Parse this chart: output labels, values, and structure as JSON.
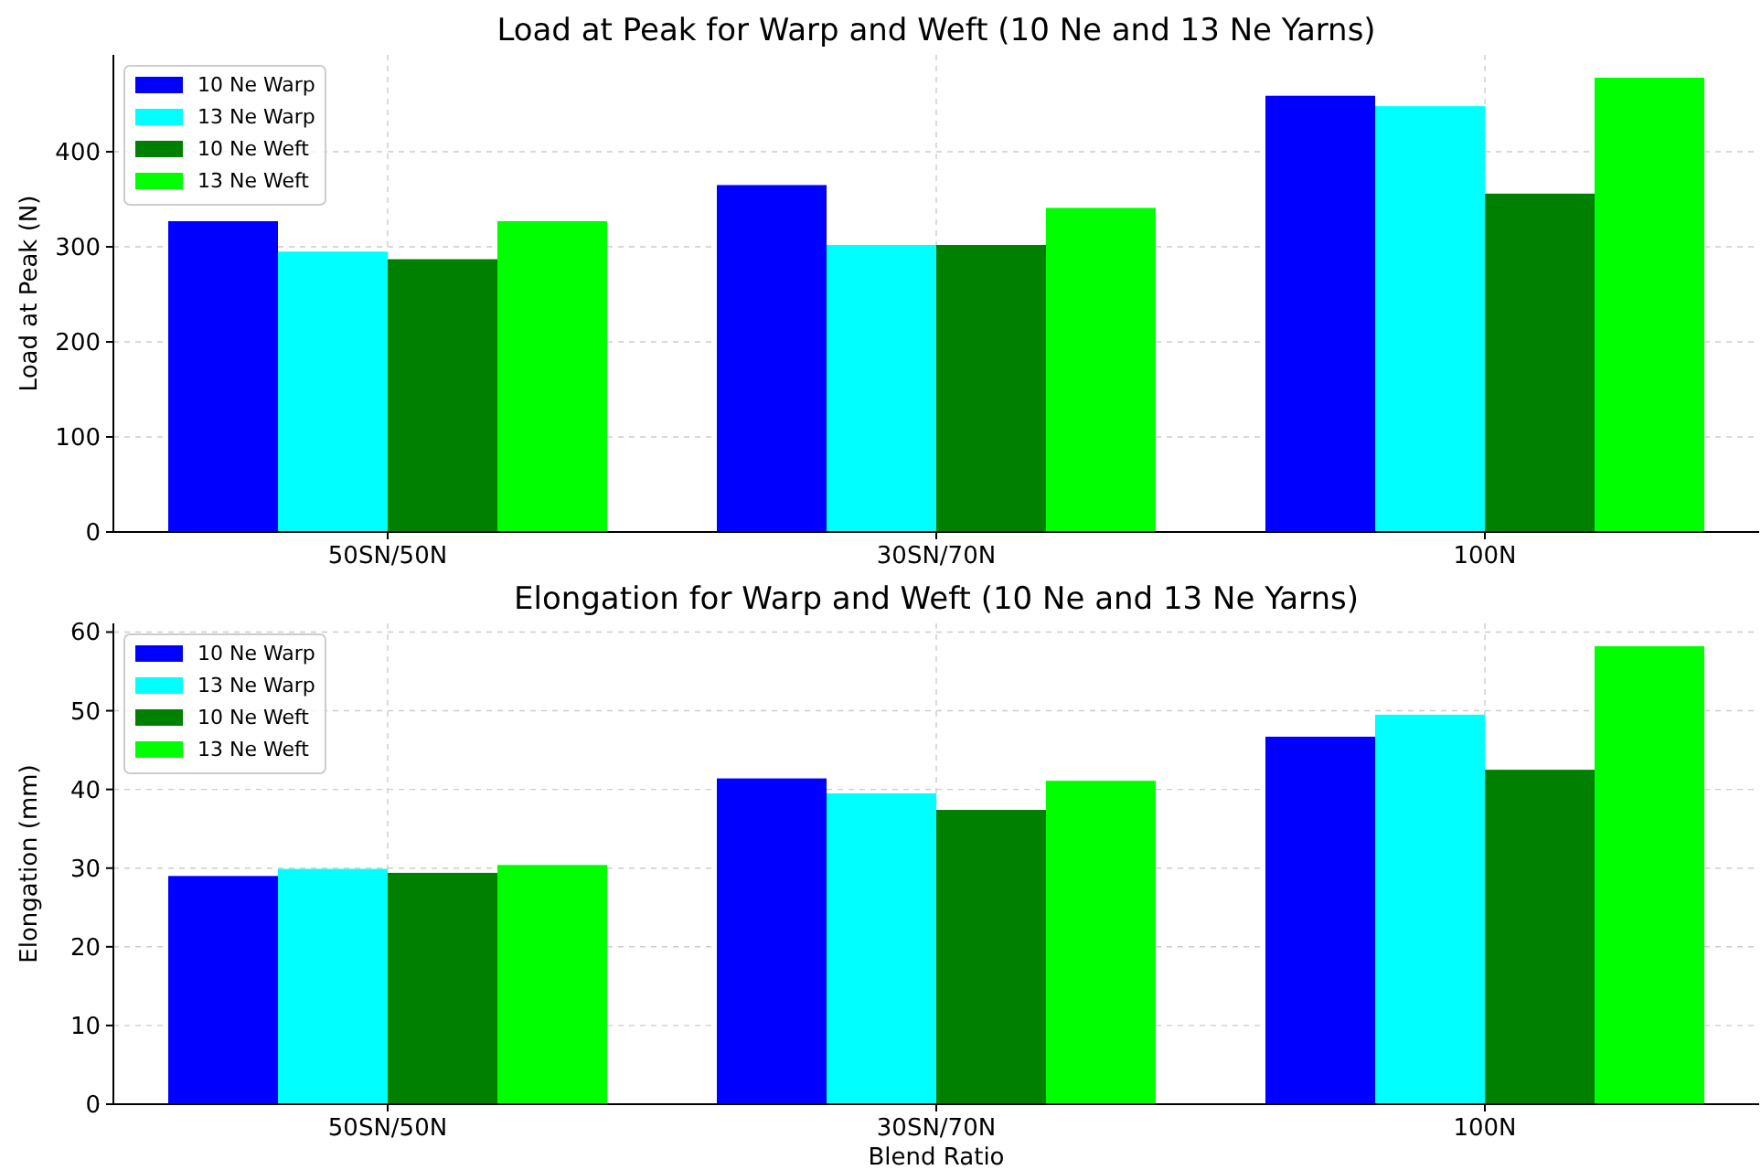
{
  "chart_data": [
    {
      "type": "bar",
      "title": "Load at Peak for Warp and Weft (10 Ne and 13 Ne Yarns)",
      "ylabel": "Load at Peak (N)",
      "categories": [
        "50SN/50N",
        "30SN/70N",
        "100N"
      ],
      "series": [
        {
          "name": "10 Ne Warp",
          "color": "#0000ff",
          "values": [
            327,
            365,
            459
          ]
        },
        {
          "name": "13 Ne Warp",
          "color": "#00ffff",
          "values": [
            295,
            302,
            448
          ]
        },
        {
          "name": "10 Ne Weft",
          "color": "#008000",
          "values": [
            287,
            302,
            356
          ]
        },
        {
          "name": "13 Ne Weft",
          "color": "#00ff00",
          "values": [
            327,
            341,
            478
          ]
        }
      ],
      "ylim": [
        0,
        502
      ],
      "yticks": [
        0,
        100,
        200,
        300,
        400
      ],
      "grid": true,
      "legend": "top left"
    },
    {
      "type": "bar",
      "title": "Elongation for Warp and Weft (10 Ne and 13 Ne Yarns)",
      "xlabel": "Blend Ratio",
      "ylabel": "Elongation (mm)",
      "categories": [
        "50SN/50N",
        "30SN/70N",
        "100N"
      ],
      "series": [
        {
          "name": "10 Ne Warp",
          "color": "#0000ff",
          "values": [
            29.0,
            41.4,
            46.7
          ]
        },
        {
          "name": "13 Ne Warp",
          "color": "#00ffff",
          "values": [
            29.9,
            39.5,
            49.5
          ]
        },
        {
          "name": "10 Ne Weft",
          "color": "#008000",
          "values": [
            29.4,
            37.4,
            42.5
          ]
        },
        {
          "name": "13 Ne Weft",
          "color": "#00ff00",
          "values": [
            30.4,
            41.1,
            58.2
          ]
        }
      ],
      "ylim": [
        0,
        61.1
      ],
      "yticks": [
        0,
        10,
        20,
        30,
        40,
        50,
        60
      ],
      "grid": true,
      "legend": "top left"
    }
  ]
}
